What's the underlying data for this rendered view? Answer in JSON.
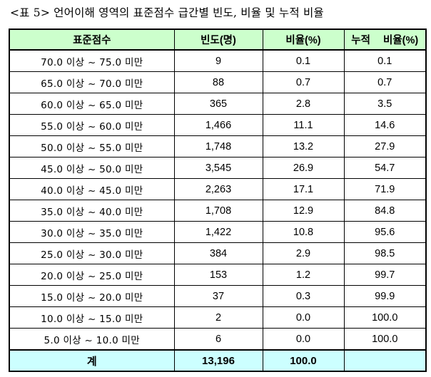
{
  "caption": "<표 5> 언어이해 영역의 표준점수 급간별 빈도, 비율 및 누적 비율",
  "headers": {
    "score": "표준점수",
    "freq": "빈도(명)",
    "ratio": "비율(%)",
    "cumulative": "누적 비율(%)"
  },
  "rows": [
    {
      "range": "70.0 이상 ~ 75.0 미만",
      "freq": "9",
      "ratio": "0.1",
      "cum": "0.1"
    },
    {
      "range": "65.0 이상 ~ 70.0 미만",
      "freq": "88",
      "ratio": "0.7",
      "cum": "0.7"
    },
    {
      "range": "60.0 이상 ~ 65.0 미만",
      "freq": "365",
      "ratio": "2.8",
      "cum": "3.5"
    },
    {
      "range": "55.0 이상 ~ 60.0 미만",
      "freq": "1,466",
      "ratio": "11.1",
      "cum": "14.6"
    },
    {
      "range": "50.0 이상 ~ 55.0 미만",
      "freq": "1,748",
      "ratio": "13.2",
      "cum": "27.9"
    },
    {
      "range": "45.0 이상 ~ 50.0 미만",
      "freq": "3,545",
      "ratio": "26.9",
      "cum": "54.7"
    },
    {
      "range": "40.0 이상 ~ 45.0 미만",
      "freq": "2,263",
      "ratio": "17.1",
      "cum": "71.9"
    },
    {
      "range": "35.0 이상 ~ 40.0 미만",
      "freq": "1,708",
      "ratio": "12.9",
      "cum": "84.8"
    },
    {
      "range": "30.0 이상 ~ 35.0 미만",
      "freq": "1,422",
      "ratio": "10.8",
      "cum": "95.6"
    },
    {
      "range": "25.0 이상 ~ 30.0 미만",
      "freq": "384",
      "ratio": "2.9",
      "cum": "98.5"
    },
    {
      "range": "20.0 이상 ~ 25.0 미만",
      "freq": "153",
      "ratio": "1.2",
      "cum": "99.7"
    },
    {
      "range": "15.0 이상 ~ 20.0 미만",
      "freq": "37",
      "ratio": "0.3",
      "cum": "99.9"
    },
    {
      "range": "10.0 이상 ~ 15.0 미만",
      "freq": "2",
      "ratio": "0.0",
      "cum": "100.0"
    },
    {
      "range": "5.0 이상 ~ 10.0 미만",
      "freq": "6",
      "ratio": "0.0",
      "cum": "100.0"
    }
  ],
  "total": {
    "label": "계",
    "freq": "13,196",
    "ratio": "100.0",
    "cum": ""
  },
  "colors": {
    "header_bg": "#ccffcc",
    "total_bg": "#ccffff"
  }
}
